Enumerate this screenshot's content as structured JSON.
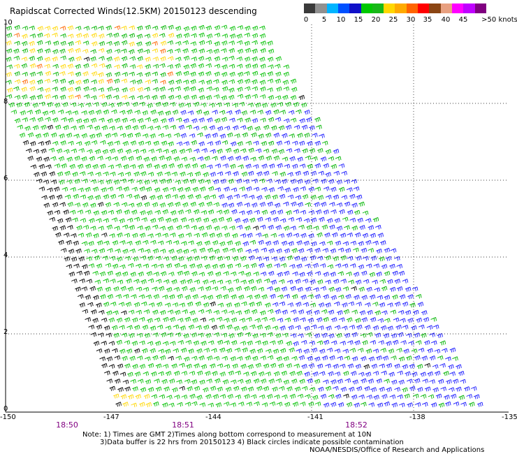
{
  "title": "Rapidscat Corrected Winds(12.5KM) 20150123 descending",
  "colorbar": {
    "colors": [
      "#3a3a3a",
      "#909090",
      "#00b4ff",
      "#0050ff",
      "#1010c8",
      "#00c800",
      "#18b818",
      "#ffd700",
      "#ffaa00",
      "#ff6400",
      "#ff0000",
      "#8b4513",
      "#e8a080",
      "#ff00ff",
      "#c000ff",
      "#800080"
    ],
    "ticks": [
      "0",
      "5",
      "10",
      "15",
      "20",
      "25",
      "30",
      "35",
      "40",
      "45",
      ">50 knots"
    ]
  },
  "axes": {
    "x_ticks": [
      "-150",
      "-147",
      "-144",
      "-141",
      "-138",
      "-135"
    ],
    "y_ticks": [
      "0",
      "2",
      "4",
      "6",
      "8",
      "10"
    ]
  },
  "times": [
    "18:50",
    "18:51",
    "18:52"
  ],
  "notes": {
    "line1": "Note: 1) Times are GMT 2)Times along bottom correspond to measurement at 10N",
    "line2": "3)Data buffer is 22 hrs from 20150123 4) Black circles indicate possible contamination",
    "line3": "NOAA/NESDIS/Office of Research and Applications"
  }
}
